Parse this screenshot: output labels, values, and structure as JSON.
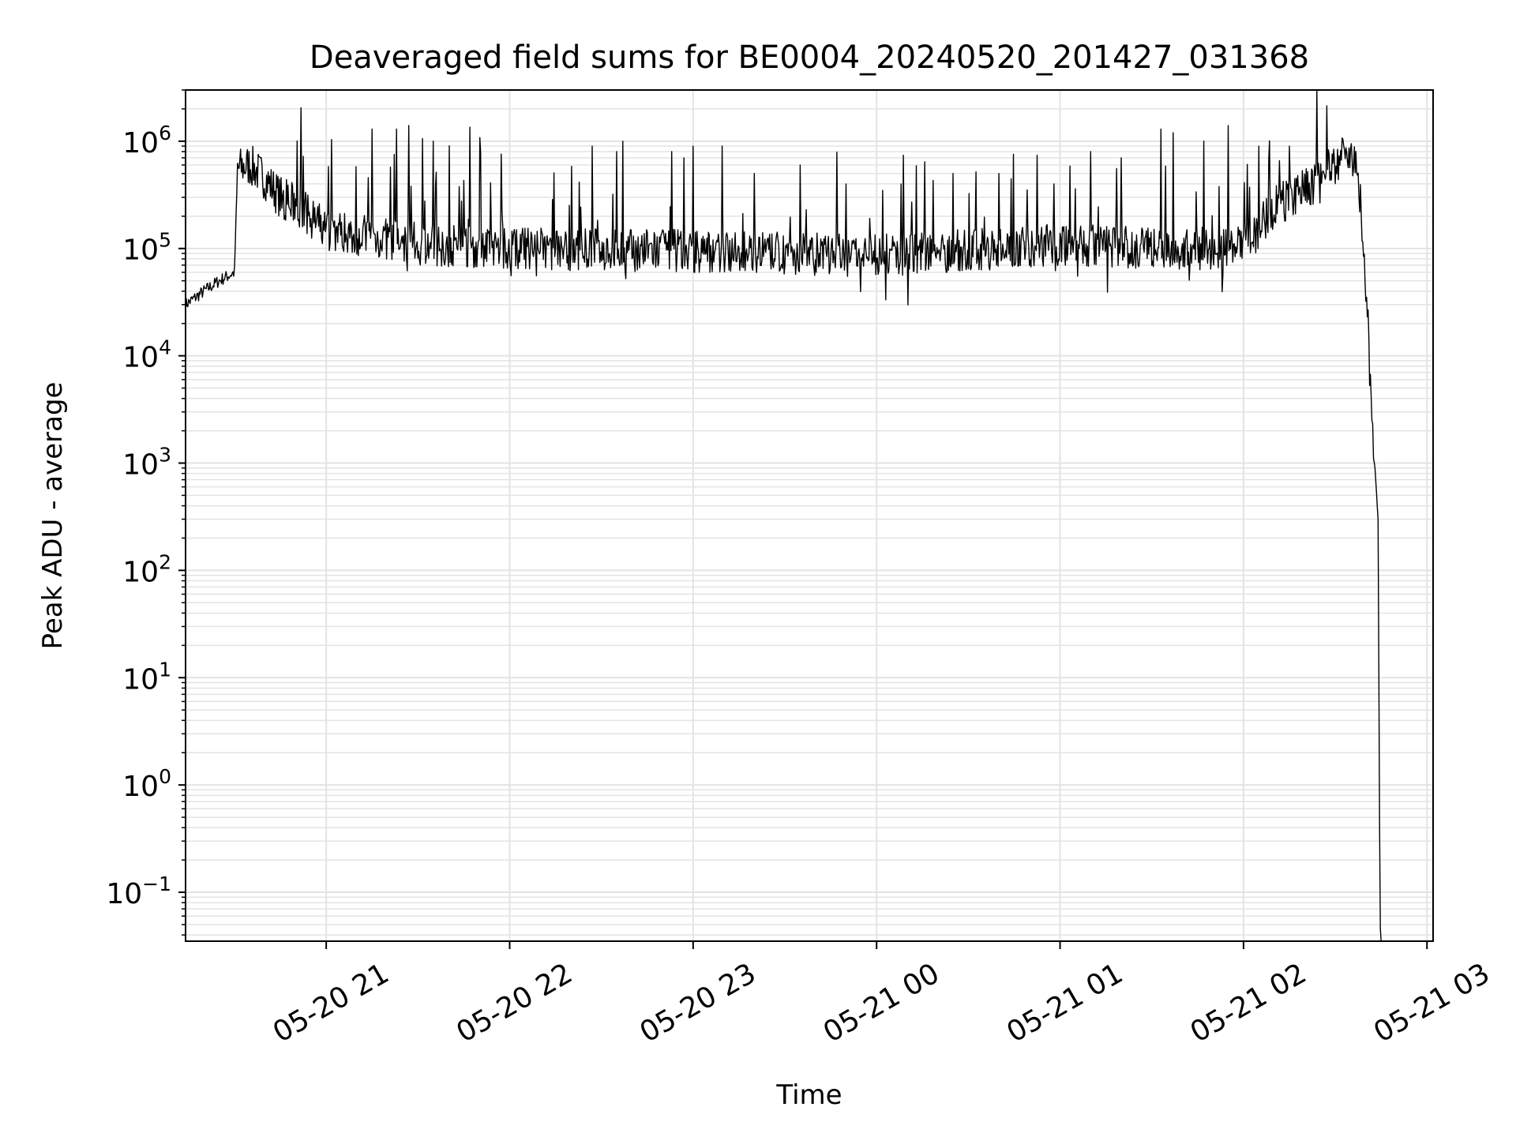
{
  "chart_data": {
    "type": "line",
    "title": "Deaveraged field sums for BE0004_20240520_201427_031368",
    "xlabel": "Time",
    "ylabel": "Peak ADU - average",
    "yscale": "log",
    "grid": true,
    "ylim": [
      0.035,
      3000000
    ],
    "xlim": [
      "2024-05-20 20:14",
      "2024-05-21 03:02"
    ],
    "y_ticks": [
      {
        "value": 0.1,
        "base": "10",
        "exp": "−1"
      },
      {
        "value": 1,
        "base": "10",
        "exp": "0"
      },
      {
        "value": 10,
        "base": "10",
        "exp": "1"
      },
      {
        "value": 100,
        "base": "10",
        "exp": "2"
      },
      {
        "value": 1000,
        "base": "10",
        "exp": "3"
      },
      {
        "value": 10000,
        "base": "10",
        "exp": "4"
      },
      {
        "value": 100000,
        "base": "10",
        "exp": "5"
      },
      {
        "value": 1000000,
        "base": "10",
        "exp": "6"
      }
    ],
    "x_ticks": [
      {
        "time": "2024-05-20 21:00",
        "label": "05-20 21"
      },
      {
        "time": "2024-05-20 22:00",
        "label": "05-20 22"
      },
      {
        "time": "2024-05-20 23:00",
        "label": "05-20 23"
      },
      {
        "time": "2024-05-21 00:00",
        "label": "05-21 00"
      },
      {
        "time": "2024-05-21 01:00",
        "label": "05-21 01"
      },
      {
        "time": "2024-05-21 02:00",
        "label": "05-21 02"
      },
      {
        "time": "2024-05-21 03:00",
        "label": "05-21 03"
      }
    ],
    "series": [
      {
        "color": "#000000",
        "noisy": true,
        "x": [
          "2024-05-20 20:14",
          "2024-05-20 20:20",
          "2024-05-20 20:25",
          "2024-05-20 20:30",
          "2024-05-20 20:31",
          "2024-05-20 20:35",
          "2024-05-20 20:40",
          "2024-05-20 20:45",
          "2024-05-20 20:50",
          "2024-05-20 21:00",
          "2024-05-20 21:30",
          "2024-05-20 22:00",
          "2024-05-20 23:00",
          "2024-05-21 00:00",
          "2024-05-21 01:00",
          "2024-05-21 01:30",
          "2024-05-21 02:00",
          "2024-05-21 02:10",
          "2024-05-21 02:20",
          "2024-05-21 02:30",
          "2024-05-21 02:33",
          "2024-05-21 02:36",
          "2024-05-21 02:38",
          "2024-05-21 02:39",
          "2024-05-21 02:40",
          "2024-05-21 02:41",
          "2024-05-21 02:42",
          "2024-05-21 02:43",
          "2024-05-21 02:44",
          "2024-05-21 02:44:40",
          "2024-05-21 02:45"
        ],
        "y": [
          30000,
          40000,
          50000,
          60000,
          550000,
          600000,
          450000,
          300000,
          250000,
          150000,
          110000,
          100000,
          95000,
          85000,
          110000,
          100000,
          100000,
          250000,
          350000,
          600000,
          850000,
          700000,
          300000,
          150000,
          40000,
          13000,
          2200,
          900,
          300,
          0.05,
          0.035
        ],
        "spikes": [
          [
            "2024-05-20 21:15",
            1300000
          ],
          [
            "2024-05-20 21:23",
            1300000
          ],
          [
            "2024-05-20 21:27",
            1400000
          ],
          [
            "2024-05-20 21:35",
            1000000
          ],
          [
            "2024-05-20 21:47",
            1350000
          ],
          [
            "2024-05-20 22:27",
            900000
          ],
          [
            "2024-05-20 22:35",
            800000
          ],
          [
            "2024-05-20 22:37",
            1000000
          ],
          [
            "2024-05-20 22:53",
            800000
          ],
          [
            "2024-05-20 22:57",
            700000
          ],
          [
            "2024-05-20 23:00",
            900000
          ],
          [
            "2024-05-20 23:20",
            500000
          ],
          [
            "2024-05-20 23:35",
            600000
          ],
          [
            "2024-05-20 23:50",
            400000
          ],
          [
            "2024-05-21 00:08",
            400000
          ],
          [
            "2024-05-21 00:25",
            500000
          ],
          [
            "2024-05-21 00:40",
            500000
          ],
          [
            "2024-05-21 00:58",
            400000
          ],
          [
            "2024-05-21 01:10",
            800000
          ],
          [
            "2024-05-21 01:20",
            700000
          ],
          [
            "2024-05-21 01:33",
            1300000
          ],
          [
            "2024-05-21 01:37",
            1200000
          ],
          [
            "2024-05-21 01:47",
            1000000
          ],
          [
            "2024-05-21 01:55",
            1400000
          ],
          [
            "2024-05-21 02:05",
            900000
          ],
          [
            "2024-05-21 02:15",
            900000
          ]
        ]
      }
    ]
  }
}
